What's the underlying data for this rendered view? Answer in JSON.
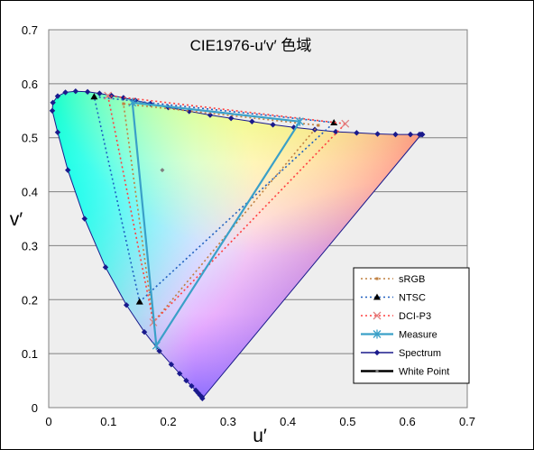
{
  "chart_data": {
    "type": "scatter",
    "title": "CIE1976-u′v′ 色域",
    "xlabel": "u′",
    "ylabel": "v′",
    "xlim": [
      0,
      0.7
    ],
    "ylim": [
      0,
      0.7
    ],
    "x_ticks": [
      "0",
      "0.1",
      "0.2",
      "0.3",
      "0.4",
      "0.5",
      "0.6",
      "0.7"
    ],
    "y_ticks": [
      "0",
      "0.1",
      "0.2",
      "0.3",
      "0.4",
      "0.5",
      "0.6",
      "0.7"
    ],
    "grid": "horizontal",
    "legend_position": "bottom-right",
    "white_point": {
      "u": 0.19,
      "v": 0.44
    },
    "series": [
      {
        "name": "sRGB",
        "color": "#c08040",
        "style": "dotted",
        "points": [
          [
            0.451,
            0.523
          ],
          [
            0.125,
            0.563
          ],
          [
            0.175,
            0.158
          ],
          [
            0.451,
            0.523
          ]
        ]
      },
      {
        "name": "NTSC",
        "color": "#2060c0",
        "style": "dotted",
        "points": [
          [
            0.477,
            0.528
          ],
          [
            0.076,
            0.576
          ],
          [
            0.152,
            0.196
          ],
          [
            0.477,
            0.528
          ]
        ]
      },
      {
        "name": "DCI-P3",
        "color": "#ff4040",
        "style": "dotted",
        "points": [
          [
            0.496,
            0.526
          ],
          [
            0.099,
            0.578
          ],
          [
            0.175,
            0.158
          ],
          [
            0.496,
            0.526
          ]
        ]
      },
      {
        "name": "Measure",
        "color": "#3aa0c8",
        "style": "solid",
        "points": [
          [
            0.42,
            0.53
          ],
          [
            0.14,
            0.565
          ],
          [
            0.18,
            0.115
          ],
          [
            0.42,
            0.53
          ]
        ]
      },
      {
        "name": "Spectrum",
        "color": "#1a1a8c",
        "style": "solid",
        "points": [
          [
            0.257,
            0.017
          ],
          [
            0.256,
            0.02
          ],
          [
            0.253,
            0.023
          ],
          [
            0.25,
            0.027
          ],
          [
            0.246,
            0.032
          ],
          [
            0.239,
            0.04
          ],
          [
            0.23,
            0.05
          ],
          [
            0.219,
            0.063
          ],
          [
            0.205,
            0.08
          ],
          [
            0.185,
            0.105
          ],
          [
            0.16,
            0.14
          ],
          [
            0.13,
            0.19
          ],
          [
            0.095,
            0.26
          ],
          [
            0.06,
            0.35
          ],
          [
            0.032,
            0.44
          ],
          [
            0.015,
            0.51
          ],
          [
            0.006,
            0.55
          ],
          [
            0.007,
            0.565
          ],
          [
            0.015,
            0.577
          ],
          [
            0.028,
            0.584
          ],
          [
            0.045,
            0.586
          ],
          [
            0.065,
            0.585
          ],
          [
            0.085,
            0.582
          ],
          [
            0.105,
            0.578
          ],
          [
            0.125,
            0.574
          ],
          [
            0.145,
            0.569
          ],
          [
            0.17,
            0.563
          ],
          [
            0.2,
            0.556
          ],
          [
            0.235,
            0.549
          ],
          [
            0.27,
            0.542
          ],
          [
            0.305,
            0.536
          ],
          [
            0.34,
            0.53
          ],
          [
            0.375,
            0.524
          ],
          [
            0.41,
            0.519
          ],
          [
            0.445,
            0.515
          ],
          [
            0.48,
            0.511
          ],
          [
            0.515,
            0.509
          ],
          [
            0.55,
            0.507
          ],
          [
            0.58,
            0.506
          ],
          [
            0.605,
            0.506
          ],
          [
            0.62,
            0.506
          ],
          [
            0.625,
            0.506
          ],
          [
            0.623,
            0.506
          ]
        ]
      },
      {
        "name": "White Point",
        "color": "#000000",
        "style": "solid",
        "points": []
      }
    ]
  }
}
